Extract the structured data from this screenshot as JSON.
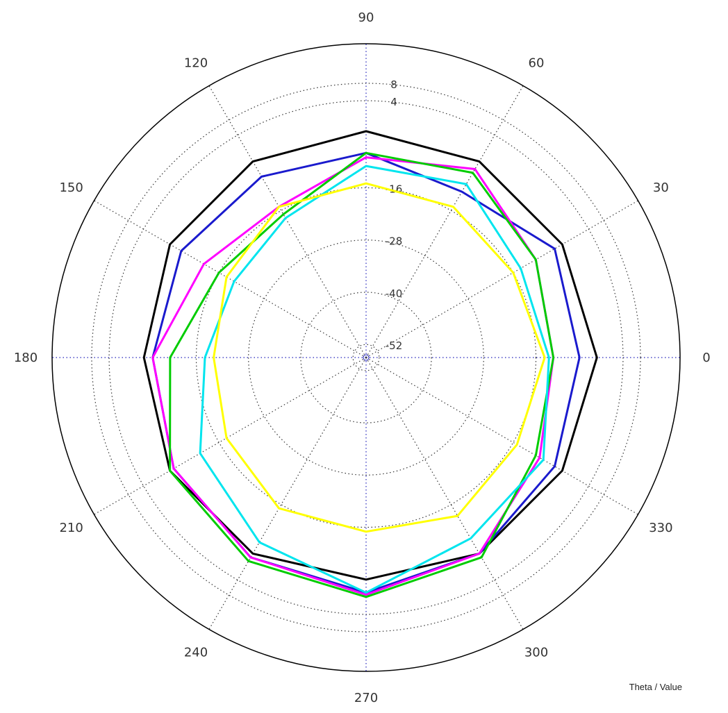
{
  "chart_data": {
    "type": "polar_line",
    "corner_label": "Theta / Value",
    "angle_ticks": [
      "0",
      "30",
      "60",
      "90",
      "120",
      "150",
      "180",
      "210",
      "240",
      "300",
      "330",
      "270"
    ],
    "angle_tick_values": [
      0,
      30,
      60,
      90,
      120,
      150,
      180,
      210,
      240,
      300,
      330,
      270
    ],
    "radial_ticks": [
      "8",
      "4",
      "-16",
      "-28",
      "-40",
      "-52"
    ],
    "radial_tick_values": [
      8,
      4,
      -16,
      -28,
      -40,
      -52
    ],
    "radial_range": [
      -55,
      8
    ],
    "theta": [
      0,
      30,
      60,
      90,
      120,
      150,
      180,
      210,
      240,
      270,
      300,
      330
    ],
    "series": [
      {
        "color": "#000000",
        "values": [
          -2,
          -3,
          -3,
          -3,
          -3,
          -3,
          -4,
          -3,
          -3,
          -4,
          -3,
          -3
        ]
      },
      {
        "color": "#1a1acd",
        "values": [
          -6,
          -5,
          -11,
          -8,
          -7,
          -6,
          -6,
          -4,
          -2,
          -1,
          -3,
          -5
        ]
      },
      {
        "color": "#ff00ff",
        "values": [
          -12,
          -10,
          -5,
          -9,
          -15,
          -12,
          -6,
          -4,
          -2,
          -0.5,
          -3,
          -9
        ]
      },
      {
        "color": "#00cc00",
        "values": [
          -12,
          -10,
          -6,
          -8,
          -17,
          -16,
          -10,
          -3,
          -1,
          0,
          -2,
          -10
        ]
      },
      {
        "color": "#00e5ee",
        "values": [
          -13,
          -14,
          -9,
          -11,
          -18,
          -20,
          -18,
          -11,
          -6,
          -1,
          -7,
          -8
        ]
      },
      {
        "color": "#ffff00",
        "values": [
          -14,
          -16,
          -15,
          -15,
          -15,
          -18,
          -20,
          -18,
          -15,
          -15,
          -13,
          -15
        ]
      }
    ]
  }
}
